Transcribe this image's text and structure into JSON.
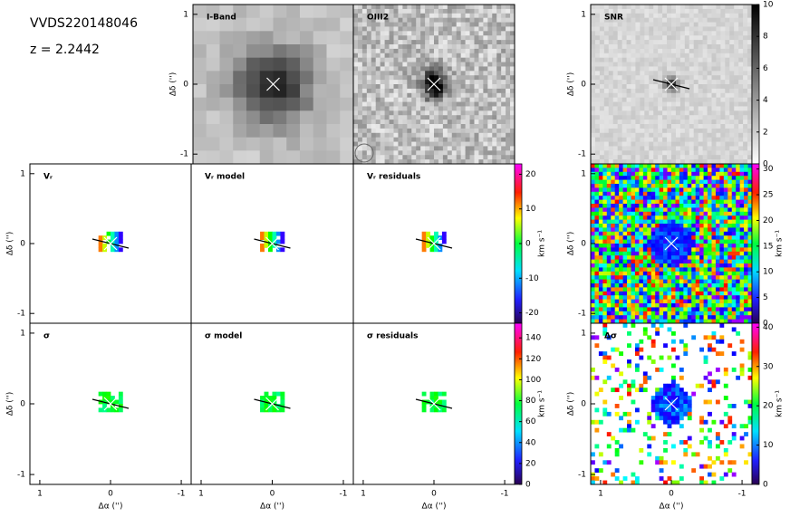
{
  "header": {
    "object": "VVDS220148046",
    "redshift": "z = 2.2442"
  },
  "chart_data": [
    {
      "type": "image",
      "title": "I-Band",
      "xlim": [
        1.14,
        -1.14
      ],
      "ylim": [
        -1.14,
        1.14
      ],
      "yticks": [
        -1,
        0,
        1
      ],
      "ylabel": "Δδ ('')"
    },
    {
      "type": "image",
      "title": "OIII2",
      "xlim": [
        1.14,
        -1.14
      ],
      "ylim": [
        -1.14,
        1.14
      ]
    },
    {
      "type": "image",
      "title": "SNR",
      "xlim": [
        1.14,
        -1.14
      ],
      "ylim": [
        -1.14,
        1.14
      ],
      "yticks": [
        -1,
        0,
        1
      ],
      "ylabel": "Δδ ('')",
      "colorbar": {
        "colormap": "gray",
        "ylim": [
          0,
          10
        ],
        "yticks": [
          0,
          2,
          4,
          6,
          8,
          10
        ]
      }
    },
    {
      "type": "image",
      "title": "Vᵣ",
      "xlim": [
        1.14,
        -1.14
      ],
      "ylim": [
        -1.14,
        1.14
      ],
      "yticks": [
        -1,
        0,
        1
      ],
      "ylabel": "Δδ ('')"
    },
    {
      "type": "image",
      "title": "Vᵣ model",
      "xlim": [
        1.14,
        -1.14
      ],
      "ylim": [
        -1.14,
        1.14
      ]
    },
    {
      "type": "image",
      "title": "Vᵣ residuals",
      "xlim": [
        1.14,
        -1.14
      ],
      "ylim": [
        -1.14,
        1.14
      ],
      "colorbar": {
        "colormap": "rainbow",
        "ylim": [
          -23,
          23
        ],
        "yticks": [
          -20,
          -10,
          0,
          10,
          20
        ],
        "label": "km s⁻¹"
      }
    },
    {
      "type": "image",
      "xlim": [
        1.14,
        -1.14
      ],
      "ylim": [
        -1.14,
        1.14
      ],
      "yticks": [
        -1,
        0,
        1
      ],
      "ylabel": "Δδ ('')",
      "colorbar": {
        "colormap": "rainbow",
        "ylim": [
          0,
          31
        ],
        "yticks": [
          0,
          5,
          10,
          15,
          20,
          25,
          30
        ],
        "label": "km s⁻¹"
      }
    },
    {
      "type": "image",
      "title": "σ",
      "xlim": [
        1.14,
        -1.14
      ],
      "ylim": [
        -1.14,
        1.14
      ],
      "xticks": [
        1,
        0,
        -1
      ],
      "yticks": [
        -1,
        0,
        1
      ],
      "xlabel": "Δα ('')",
      "ylabel": "Δδ ('')"
    },
    {
      "type": "image",
      "title": "σ model",
      "xlim": [
        1.14,
        -1.14
      ],
      "ylim": [
        -1.14,
        1.14
      ],
      "xticks": [
        1,
        0,
        -1
      ],
      "xlabel": "Δα ('')"
    },
    {
      "type": "image",
      "title": "σ residuals",
      "xlim": [
        1.14,
        -1.14
      ],
      "ylim": [
        -1.14,
        1.14
      ],
      "xticks": [
        1,
        0,
        -1
      ],
      "xlabel": "Δα ('')",
      "colorbar": {
        "colormap": "rainbow",
        "ylim": [
          0,
          154
        ],
        "yticks": [
          0,
          20,
          40,
          60,
          80,
          100,
          120,
          140
        ],
        "label": "km s⁻¹"
      }
    },
    {
      "type": "image",
      "title": "Δσ",
      "xlim": [
        1.14,
        -1.14
      ],
      "ylim": [
        -1.14,
        1.14
      ],
      "xticks": [
        1,
        0,
        -1
      ],
      "yticks": [
        -1,
        0,
        1
      ],
      "xlabel": "Δα ('')",
      "ylabel": "Δδ ('')",
      "colorbar": {
        "colormap": "rainbow",
        "ylim": [
          0,
          41
        ],
        "yticks": [
          0,
          10,
          20,
          30,
          40
        ],
        "label": "km s⁻¹"
      }
    }
  ]
}
